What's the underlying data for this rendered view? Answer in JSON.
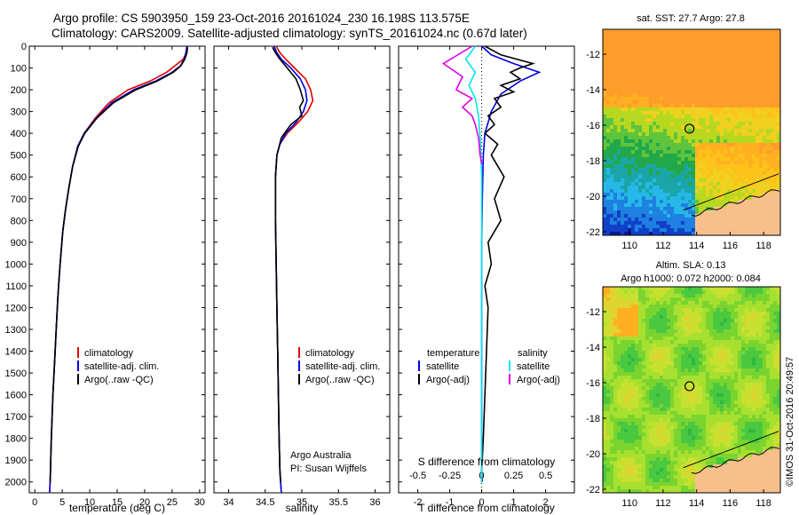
{
  "title_line1": "Argo profile: CS 5903950_159 23-Oct-2016 20161024_230 16.198S 113.575E",
  "title_line2": "Climatology: CARS2009. Satellite-adjusted climatology: synTS_20161024.nc (0.67d later)",
  "timestamp": "©IMOS 31-Oct-2016 20:49:57",
  "colors": {
    "climatology": "#e00000",
    "satellite": "#0000e0",
    "argo": "#000000",
    "sat_salinity": "#00e5ee",
    "argo_adj_salinity": "#e000e0",
    "land": "#f7c08a"
  },
  "panels": {
    "temperature": {
      "xlabel": "temperature (deg C)",
      "legend": [
        "climatology",
        "satellite-adj. clim.",
        "Argo(..raw -QC)"
      ]
    },
    "salinity": {
      "xlabel": "salinity",
      "legend": [
        "climatology",
        "satellite-adj. clim.",
        "Argo(..raw -QC)"
      ],
      "credit1": "Argo Australia",
      "credit2": "PI: Susan Wijffels"
    },
    "difference": {
      "xlabel": "T difference from climatology",
      "s_xlabel": "S difference from climatology",
      "legend_t_head": "temperature",
      "legend_s_head": "salinity",
      "legend_t": [
        "satellite",
        "Argo(-adj)"
      ],
      "legend_s": [
        "satellite",
        "Argo(-adj)"
      ]
    },
    "sst_map": {
      "title": "sat. SST: 27.7 Argo: 27.8"
    },
    "sla_map": {
      "title1": "Altim. SLA: 0.13",
      "title2": "Argo h1000: 0.072 h2000: 0.084"
    }
  },
  "chart_data": [
    {
      "type": "line",
      "title": "",
      "xlabel": "temperature (deg C)",
      "ylabel": "",
      "xlim": [
        -1,
        31
      ],
      "ylim": [
        2050,
        0
      ],
      "xticks": [
        0,
        5,
        10,
        15,
        20,
        25,
        30
      ],
      "yticks": [
        0,
        100,
        200,
        300,
        400,
        500,
        600,
        700,
        800,
        900,
        1000,
        1100,
        1200,
        1300,
        1400,
        1500,
        1600,
        1700,
        1800,
        1900,
        2000
      ],
      "series": [
        {
          "name": "climatology",
          "color": "#e00000",
          "x": [
            27.8,
            27.6,
            27.0,
            25.5,
            24.0,
            21.0,
            17.0,
            13.5,
            11.0,
            9.0,
            7.8,
            6.9,
            6.2,
            5.6,
            5.1,
            4.6,
            4.2,
            3.9,
            3.6,
            3.3,
            3.0,
            2.8,
            2.7
          ],
          "y": [
            0,
            30,
            60,
            90,
            120,
            160,
            200,
            260,
            330,
            400,
            460,
            550,
            650,
            750,
            850,
            1000,
            1150,
            1300,
            1450,
            1600,
            1800,
            2000,
            2050
          ]
        },
        {
          "name": "satellite-adj. clim.",
          "color": "#0000e0",
          "x": [
            27.7,
            27.5,
            27.2,
            26.5,
            25.0,
            22.0,
            18.0,
            14.0,
            11.2,
            9.0,
            7.8,
            6.9,
            6.2,
            5.6,
            5.1,
            4.6,
            4.2,
            3.9,
            3.6,
            3.3,
            3.0,
            2.8,
            2.7
          ],
          "y": [
            0,
            30,
            60,
            90,
            120,
            160,
            200,
            260,
            330,
            400,
            460,
            550,
            650,
            750,
            850,
            1000,
            1150,
            1300,
            1450,
            1600,
            1800,
            2000,
            2050
          ]
        },
        {
          "name": "Argo(..raw -QC)",
          "color": "#000000",
          "x": [
            27.8,
            27.7,
            27.3,
            26.6,
            25.2,
            22.3,
            18.4,
            14.3,
            11.3,
            9.1,
            7.9,
            6.9,
            6.2,
            5.6,
            5.1,
            4.6,
            4.2,
            3.9,
            3.6,
            3.3,
            3.0,
            2.8
          ],
          "y": [
            5,
            30,
            60,
            90,
            120,
            160,
            200,
            260,
            330,
            400,
            460,
            550,
            650,
            750,
            850,
            1000,
            1150,
            1300,
            1450,
            1600,
            1800,
            2000
          ]
        }
      ]
    },
    {
      "type": "line",
      "title": "",
      "xlabel": "salinity",
      "ylabel": "",
      "xlim": [
        33.8,
        36.2
      ],
      "ylim": [
        2050,
        0
      ],
      "xticks": [
        34,
        34.5,
        35,
        35.5,
        36
      ],
      "series": [
        {
          "name": "climatology",
          "color": "#e00000",
          "x": [
            34.65,
            34.7,
            34.78,
            34.9,
            35.05,
            35.12,
            35.15,
            35.08,
            34.95,
            34.8,
            34.7,
            34.66,
            34.64,
            34.64,
            34.65,
            34.66,
            34.67,
            34.68,
            34.69,
            34.7,
            34.71,
            34.72
          ],
          "y": [
            0,
            30,
            60,
            100,
            150,
            200,
            250,
            300,
            350,
            400,
            450,
            500,
            600,
            800,
            1000,
            1200,
            1400,
            1600,
            1800,
            1950,
            2000,
            2050
          ]
        },
        {
          "name": "satellite-adj. clim.",
          "color": "#0000e0",
          "x": [
            34.62,
            34.66,
            34.72,
            34.85,
            34.98,
            35.05,
            35.07,
            35.02,
            34.92,
            34.78,
            34.7,
            34.66,
            34.64,
            34.64,
            34.65,
            34.66,
            34.67,
            34.68,
            34.69,
            34.7,
            34.71,
            34.72
          ],
          "y": [
            0,
            30,
            60,
            100,
            150,
            200,
            250,
            300,
            350,
            400,
            450,
            500,
            600,
            800,
            1000,
            1200,
            1400,
            1600,
            1800,
            1950,
            2000,
            2050
          ]
        },
        {
          "name": "Argo(..raw -QC)",
          "color": "#000000",
          "x": [
            34.6,
            34.64,
            34.7,
            34.8,
            34.92,
            34.98,
            35.02,
            34.97,
            35.0,
            34.85,
            34.72,
            34.66,
            34.64,
            34.64,
            34.65,
            34.66,
            34.67,
            34.68,
            34.69,
            34.7,
            34.71
          ],
          "y": [
            5,
            30,
            60,
            100,
            150,
            200,
            250,
            280,
            320,
            360,
            420,
            500,
            600,
            800,
            1000,
            1200,
            1400,
            1600,
            1800,
            1950,
            2000
          ]
        }
      ]
    },
    {
      "type": "line",
      "title": "",
      "xlabel": "T difference from climatology",
      "ylabel": "",
      "xlim": [
        -2.6,
        2.9
      ],
      "ylim": [
        2050,
        0
      ],
      "xticks": [
        -2,
        -1,
        0,
        1,
        2
      ],
      "s_xticks": [
        "-0.5",
        "-0.25",
        "0",
        "0.25",
        "0.5"
      ],
      "series": [
        {
          "name": "satellite (T)",
          "color": "#0000e0",
          "x": [
            0,
            0.3,
            1.0,
            1.8,
            1.2,
            0.6,
            0.3,
            0.1,
            0.05,
            0.02,
            0.0,
            0.0,
            0.0,
            0.0
          ],
          "y": [
            0,
            40,
            80,
            120,
            160,
            220,
            300,
            400,
            500,
            700,
            900,
            1200,
            1600,
            2000
          ]
        },
        {
          "name": "Argo(-adj) (T)",
          "color": "#000000",
          "x": [
            0.1,
            0.6,
            1.6,
            1.2,
            0.9,
            1.2,
            0.6,
            1.0,
            0.4,
            0.6,
            0.2,
            0.4,
            0.1,
            0.5,
            0.3,
            0.7,
            0.4,
            0.6,
            0.2,
            0.3,
            0.1,
            0.2,
            0.15,
            0.1,
            0.05,
            0.0,
            0.02
          ],
          "y": [
            0,
            40,
            80,
            100,
            120,
            150,
            180,
            210,
            240,
            280,
            320,
            360,
            400,
            450,
            500,
            600,
            700,
            800,
            900,
            1000,
            1100,
            1200,
            1400,
            1600,
            1800,
            1950,
            2000
          ]
        },
        {
          "name": "satellite (S)",
          "color": "#00e5ee",
          "x": [
            -0.2,
            -0.5,
            -0.2,
            -0.4,
            -0.2,
            -0.1,
            -0.05,
            0.0,
            0.0,
            0.0,
            0.0,
            0.0
          ],
          "y": [
            0,
            60,
            120,
            180,
            240,
            320,
            420,
            600,
            900,
            1300,
            1700,
            2000
          ]
        },
        {
          "name": "Argo(-adj) (S)",
          "color": "#e000e0",
          "x": [
            -0.3,
            -1.2,
            -0.6,
            -0.8,
            -0.3,
            -0.6,
            -0.3,
            -0.2,
            -0.1,
            -0.05,
            0.0
          ],
          "y": [
            0,
            80,
            140,
            200,
            240,
            280,
            320,
            360,
            420,
            500,
            540
          ]
        }
      ]
    }
  ],
  "maps": {
    "sst": {
      "xticks": [
        110,
        112,
        114,
        116,
        118
      ],
      "yticks": [
        -12,
        -14,
        -16,
        -18,
        -20,
        -22
      ],
      "argo_lon": 113.575,
      "argo_lat": -16.198
    },
    "sla": {
      "xticks": [
        110,
        112,
        114,
        116,
        118
      ],
      "yticks": [
        -12,
        -14,
        -16,
        -18,
        -20,
        -22
      ],
      "argo_lon": 113.575,
      "argo_lat": -16.198
    }
  }
}
